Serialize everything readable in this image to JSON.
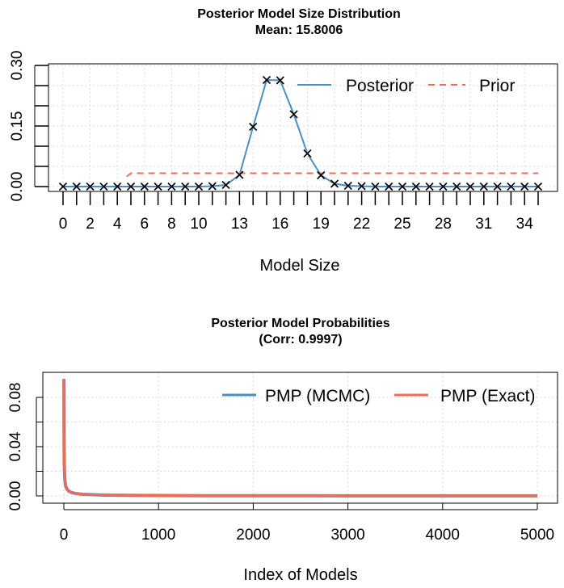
{
  "chart_data": [
    {
      "type": "line",
      "title": "Posterior Model Size Distribution",
      "subtitle": "Mean: 15.8006",
      "xlabel": "Model Size",
      "ylabel": "",
      "x_tick_labels": [
        "0",
        "2",
        "4",
        "6",
        "8",
        "10",
        "13",
        "16",
        "19",
        "22",
        "25",
        "28",
        "31",
        "34"
      ],
      "y_tick_labels": [
        "0.00",
        "0.15",
        "0.30"
      ],
      "ylim": [
        0,
        0.3
      ],
      "xlim": [
        0,
        35
      ],
      "legend_position": "top-right",
      "grid": true,
      "series": [
        {
          "name": "Posterior",
          "color": "#4a8fc5",
          "style": "solid",
          "marker": "x",
          "x": [
            0,
            1,
            2,
            3,
            4,
            5,
            6,
            7,
            8,
            9,
            10,
            11,
            12,
            13,
            14,
            15,
            16,
            17,
            18,
            19,
            20,
            21,
            22,
            23,
            24,
            25,
            26,
            27,
            28,
            29,
            30,
            31,
            32,
            33,
            34,
            35
          ],
          "values": [
            0,
            0,
            0,
            0,
            0,
            0,
            0,
            0,
            0,
            0,
            0,
            0.001,
            0.004,
            0.029,
            0.148,
            0.264,
            0.263,
            0.179,
            0.082,
            0.028,
            0.007,
            0.002,
            0.001,
            0,
            0,
            0,
            0,
            0,
            0,
            0,
            0,
            0,
            0,
            0,
            0,
            0
          ]
        },
        {
          "name": "Prior",
          "color": "#f26b55",
          "style": "dashed",
          "x": [
            4.7,
            5,
            35
          ],
          "values": [
            0.025,
            0.033,
            0.033
          ]
        }
      ]
    },
    {
      "type": "line",
      "title": "Posterior Model Probabilities",
      "subtitle": "(Corr: 0.9997)",
      "xlabel": "Index of Models",
      "ylabel": "",
      "x_tick_labels": [
        "0",
        "1000",
        "2000",
        "3000",
        "4000",
        "5000"
      ],
      "y_tick_labels": [
        "0.00",
        "0.04",
        "0.08"
      ],
      "xlim": [
        0,
        5000
      ],
      "ylim": [
        0,
        0.095
      ],
      "legend_position": "top-right",
      "grid": true,
      "series": [
        {
          "name": "PMP (MCMC)",
          "color": "#4a8fc5",
          "x": [
            1,
            2,
            3,
            5,
            8,
            12,
            20,
            30,
            50,
            80,
            120,
            200,
            400,
            800,
            1500,
            3000,
            5000
          ],
          "values": [
            0.095,
            0.06,
            0.04,
            0.025,
            0.017,
            0.012,
            0.008,
            0.006,
            0.004,
            0.0028,
            0.002,
            0.0013,
            0.0007,
            0.0004,
            0.0002,
            0.0001,
            5e-05
          ]
        },
        {
          "name": "PMP (Exact)",
          "color": "#f26b55",
          "x": [
            1,
            2,
            3,
            5,
            8,
            12,
            20,
            30,
            50,
            80,
            120,
            200,
            400,
            800,
            1500,
            3000,
            5000
          ],
          "values": [
            0.095,
            0.06,
            0.04,
            0.025,
            0.017,
            0.012,
            0.008,
            0.006,
            0.004,
            0.0028,
            0.002,
            0.0013,
            0.0007,
            0.0004,
            0.0002,
            0.0001,
            5e-05
          ]
        }
      ]
    }
  ]
}
